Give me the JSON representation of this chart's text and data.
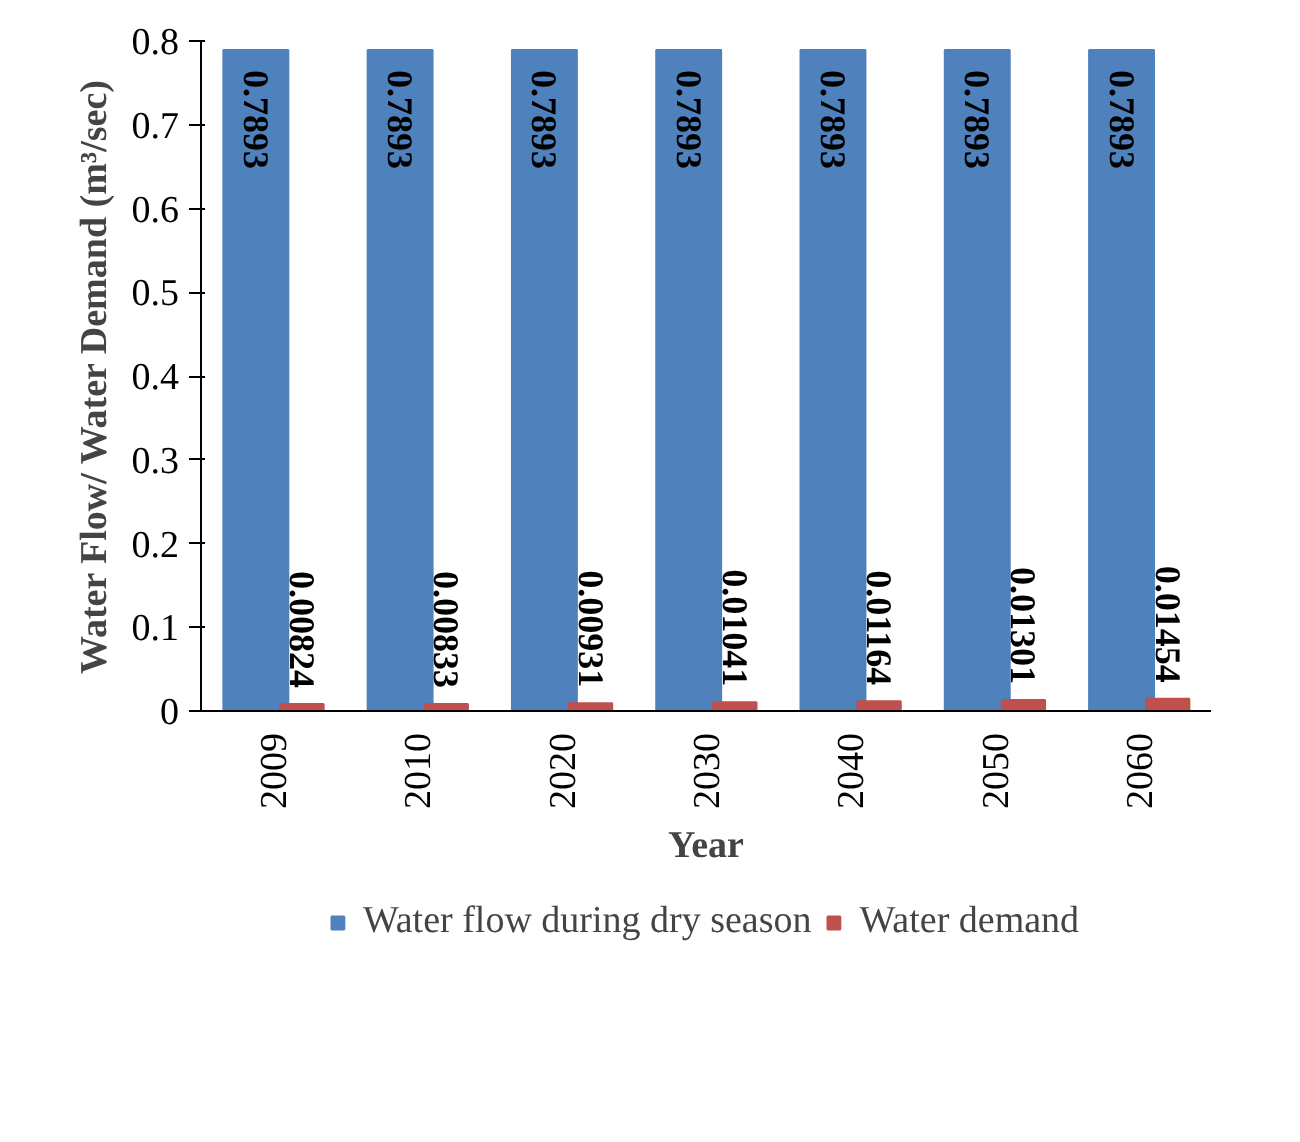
{
  "chart_data": {
    "type": "bar",
    "xlabel": "Year",
    "ylabel": "Water Flow/ Water Demand (m³/sec)",
    "categories": [
      "2009",
      "2010",
      "2020",
      "2030",
      "2040",
      "2050",
      "2060"
    ],
    "series": [
      {
        "name": "Water flow during dry season",
        "color": "#4f81bd",
        "values": [
          0.7893,
          0.7893,
          0.7893,
          0.7893,
          0.7893,
          0.7893,
          0.7893
        ]
      },
      {
        "name": "Water demand",
        "color": "#c0504d",
        "values": [
          0.00824,
          0.00833,
          0.00931,
          0.01041,
          0.01164,
          0.01301,
          0.01454
        ]
      }
    ],
    "ylim": [
      0,
      0.8
    ],
    "yticks": [
      0,
      0.1,
      0.2,
      0.3,
      0.4,
      0.5,
      0.6,
      0.7,
      0.8
    ],
    "data_labels": true,
    "legend": "bottom",
    "grid": false
  }
}
